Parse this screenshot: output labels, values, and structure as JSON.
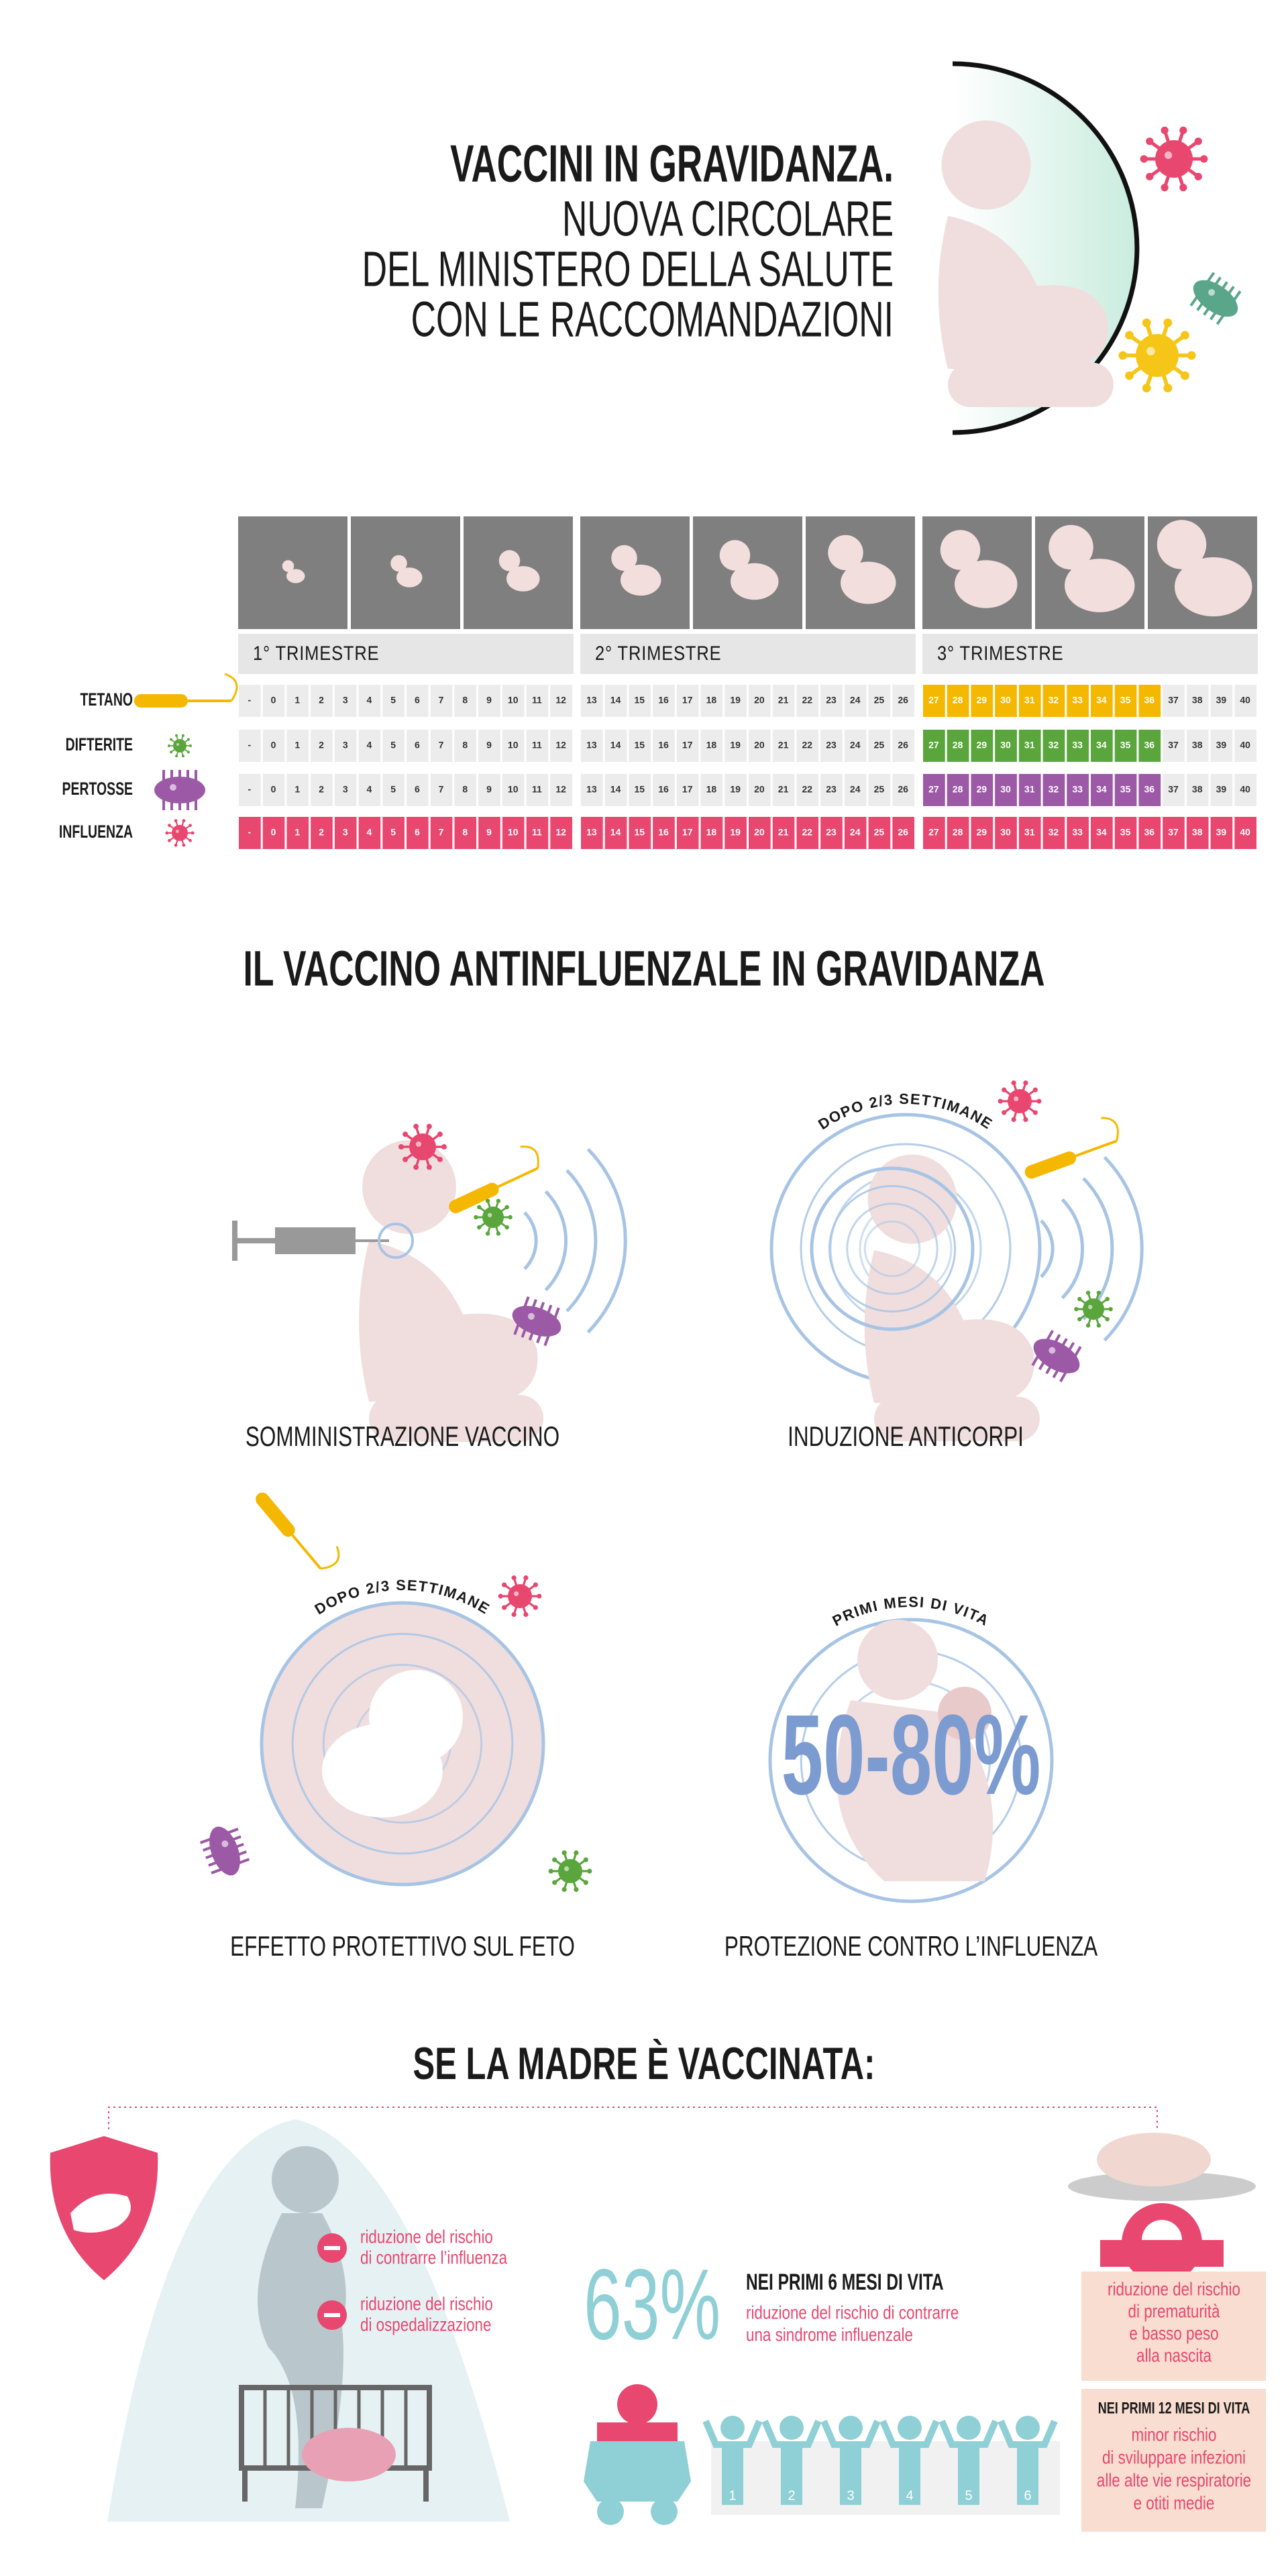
{
  "header": {
    "title": "VACCINI IN GRAVIDANZA.",
    "subtitle": [
      "NUOVA CIRCOLARE",
      "DEL MINISTERO DELLA SALUTE",
      "CON LE RACCOMANDAZIONI"
    ]
  },
  "calendar": {
    "trimesters": [
      "1° TRIMESTRE",
      "2° TRIMESTRE",
      "3° TRIMESTRE"
    ],
    "weeks": [
      "-",
      0,
      1,
      2,
      3,
      4,
      5,
      6,
      7,
      8,
      9,
      10,
      11,
      12,
      13,
      14,
      15,
      16,
      17,
      18,
      19,
      20,
      21,
      22,
      23,
      24,
      25,
      26,
      27,
      28,
      29,
      30,
      31,
      32,
      33,
      34,
      35,
      36,
      37,
      38,
      39,
      40
    ],
    "vaccines": [
      {
        "name": "TETANO",
        "color": "#f5b800",
        "highlight": [
          27,
          36
        ]
      },
      {
        "name": "DIFTERITE",
        "color": "#5aa63c",
        "highlight": [
          27,
          36
        ]
      },
      {
        "name": "PERTOSSE",
        "color": "#9b59a6",
        "highlight": [
          27,
          36
        ]
      },
      {
        "name": "INFLUENZA",
        "color": "#e8476f",
        "highlight": "all"
      }
    ]
  },
  "flu": {
    "title": "IL VACCINO ANTINFLUENZALE IN GRAVIDANZA",
    "steps": [
      {
        "label": "SOMMINISTRAZIONE VACCINO"
      },
      {
        "arc": "DOPO 2/3 SETTIMANE",
        "label": "INDUZIONE ANTICORPI"
      },
      {
        "arc": "DOPO 2/3 SETTIMANE",
        "label": "EFFETTO PROTETTIVO SUL FETO"
      },
      {
        "arc": "PRIMI MESI DI VITA",
        "figure": "50-80%",
        "label": "PROTEZIONE CONTRO L’INFLUENZA"
      }
    ]
  },
  "mother": {
    "title": "SE LA MADRE È VACCINATA:",
    "benefits": [
      [
        "riduzione del rischio",
        "di contrarre l’influenza"
      ],
      [
        "riduzione del rischio",
        "di ospedalizzazione"
      ]
    ],
    "stat": {
      "figure": "63%",
      "heading": "NEI PRIMI 6 MESI DI VITA",
      "text": [
        "riduzione del rischio di contrarre",
        "una sindrome influenzale"
      ]
    },
    "children": [
      1,
      2,
      3,
      4,
      5,
      6
    ],
    "boxes": [
      {
        "text": [
          "riduzione del rischio",
          "di prematurità",
          "e basso peso",
          "alla nascita"
        ]
      },
      {
        "heading": "NEI PRIMI 12 MESI DI VITA",
        "text": [
          "minor rischio",
          "di sviluppare infezioni",
          "alle alte vie respiratorie",
          "e otiti medie"
        ]
      }
    ]
  }
}
